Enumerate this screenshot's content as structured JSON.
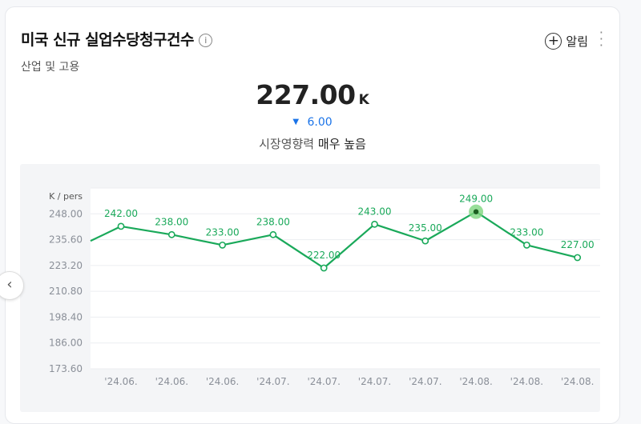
{
  "header": {
    "title": "미국 신규 실업수당청구건수",
    "info_icon": "i",
    "subtitle": "산업 및 고용",
    "alert_label": "알림"
  },
  "summary": {
    "value": "227.00",
    "unit": "K",
    "change": "6.00",
    "change_direction": "down",
    "impact_label": "시장영향력",
    "impact_value": "매우 높음"
  },
  "colors": {
    "line": "#1aa95a",
    "change": "#1a73e8",
    "highlight": "#7ed67e"
  },
  "chart_data": {
    "type": "line",
    "ylabel": "K / pers",
    "x": [
      "'24.06.",
      "'24.06.",
      "'24.06.",
      "'24.07.",
      "'24.07.",
      "'24.07.",
      "'24.07.",
      "'24.08.",
      "'24.08.",
      "'24.08."
    ],
    "series": [
      {
        "values": [
          242.0,
          238.0,
          233.0,
          238.0,
          222.0,
          243.0,
          235.0,
          249.0,
          233.0,
          227.0
        ],
        "labels": [
          "242.00",
          "238.00",
          "233.00",
          "238.00",
          "222.00",
          "243.00",
          "235.00",
          "249.00",
          "233.00",
          "227.00"
        ]
      }
    ],
    "partial_start_value": 235,
    "highlight_index": 7,
    "yticks": [
      "248.00",
      "235.60",
      "223.20",
      "210.80",
      "198.40",
      "186.00",
      "173.60"
    ],
    "ylim": [
      173.6,
      260.4
    ],
    "grid": true
  }
}
